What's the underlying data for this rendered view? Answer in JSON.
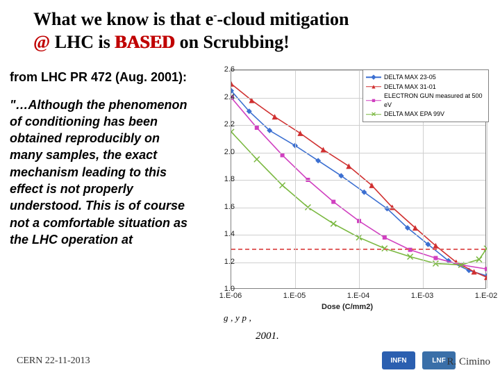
{
  "title": {
    "prefix": "What we know is that e",
    "sup": "-",
    "mid": "-cloud mitigation ",
    "at": "@",
    "after_at": " LHC is ",
    "based": "BASED",
    "suffix": " on Scrubbing!"
  },
  "left": {
    "from": "from LHC PR 472 (Aug. 2001):",
    "quote": "\"…Although the phenomenon of conditioning has been obtained reproducibly on many samples, the exact mechanism leading to this effect is not properly understood. This is of course not a comfortable situation as the LHC operation at"
  },
  "chart": {
    "type": "line",
    "xlabel": "Dose (C/mm2)",
    "y": {
      "min": 1.0,
      "max": 2.6,
      "step": 0.2,
      "ticks": [
        "1.0",
        "1.2",
        "1.4",
        "1.6",
        "1.8",
        "2.0",
        "2.2",
        "2.4",
        "2.6"
      ]
    },
    "x": {
      "ticks": [
        "1.E-06",
        "1.E-05",
        "1.E-04",
        "1.E-03",
        "1.E-02"
      ],
      "positions": [
        0,
        0.25,
        0.5,
        0.75,
        1.0
      ],
      "log": true
    },
    "grid_color": "#cfcfcf",
    "background_color": "#ffffff",
    "ref_line": {
      "y": 1.3,
      "color": "#e06060"
    },
    "legend": [
      {
        "label": "DELTA MAX 23-05",
        "color": "#3b6fd1",
        "marker": "diamond"
      },
      {
        "label": "DELTA MAX 31-01",
        "color": "#d03030",
        "marker": "triangle"
      },
      {
        "label": "ELECTRON GUN  measured at 500 eV",
        "color": "#d040c0",
        "marker": "square"
      },
      {
        "label": "DELTA MAX EPA 99V",
        "color": "#7ab840",
        "marker": "x"
      }
    ],
    "series": [
      {
        "color": "#3b6fd1",
        "marker": "diamond",
        "points": [
          [
            0.0,
            2.45
          ],
          [
            0.07,
            2.3
          ],
          [
            0.15,
            2.16
          ],
          [
            0.25,
            2.05
          ],
          [
            0.34,
            1.94
          ],
          [
            0.43,
            1.83
          ],
          [
            0.52,
            1.71
          ],
          [
            0.61,
            1.59
          ],
          [
            0.69,
            1.45
          ],
          [
            0.77,
            1.33
          ],
          [
            0.85,
            1.21
          ],
          [
            0.93,
            1.14
          ],
          [
            1.0,
            1.1
          ]
        ]
      },
      {
        "color": "#d03030",
        "marker": "triangle",
        "points": [
          [
            0.0,
            2.5
          ],
          [
            0.08,
            2.38
          ],
          [
            0.17,
            2.26
          ],
          [
            0.27,
            2.14
          ],
          [
            0.36,
            2.02
          ],
          [
            0.46,
            1.9
          ],
          [
            0.55,
            1.76
          ],
          [
            0.63,
            1.6
          ],
          [
            0.72,
            1.45
          ],
          [
            0.8,
            1.32
          ],
          [
            0.88,
            1.2
          ],
          [
            0.95,
            1.13
          ],
          [
            1.0,
            1.09
          ]
        ]
      },
      {
        "color": "#d040c0",
        "marker": "square",
        "points": [
          [
            0.0,
            2.4
          ],
          [
            0.1,
            2.18
          ],
          [
            0.2,
            1.98
          ],
          [
            0.3,
            1.8
          ],
          [
            0.4,
            1.64
          ],
          [
            0.5,
            1.5
          ],
          [
            0.6,
            1.38
          ],
          [
            0.7,
            1.29
          ],
          [
            0.8,
            1.23
          ],
          [
            0.9,
            1.18
          ],
          [
            1.0,
            1.15
          ]
        ]
      },
      {
        "color": "#7ab840",
        "marker": "x",
        "points": [
          [
            0.0,
            2.15
          ],
          [
            0.1,
            1.95
          ],
          [
            0.2,
            1.76
          ],
          [
            0.3,
            1.6
          ],
          [
            0.4,
            1.48
          ],
          [
            0.5,
            1.38
          ],
          [
            0.6,
            1.3
          ],
          [
            0.7,
            1.24
          ],
          [
            0.8,
            1.19
          ],
          [
            0.9,
            1.18
          ],
          [
            0.97,
            1.22
          ],
          [
            1.0,
            1.3
          ]
        ]
      }
    ]
  },
  "caption": {
    "tail": "g      ,      y     p         ,",
    "year": "2001."
  },
  "logos": {
    "infn": {
      "label": "INFN",
      "bg": "#2b5fb0"
    },
    "lnf": {
      "label": "LNF",
      "bg": "#3a6fa8"
    }
  },
  "footer": {
    "left": "CERN 22-11-2013",
    "right": "R. Cimino"
  }
}
